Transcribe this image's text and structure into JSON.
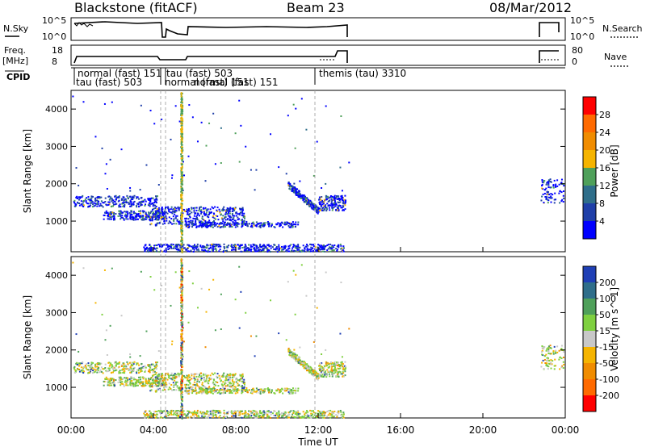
{
  "header": {
    "station": "Blackstone (fitACF)",
    "beam": "Beam 23",
    "date": "08/Mar/2012"
  },
  "param_panels": {
    "nsky_label": "N.Sky",
    "nsky_ticks": [
      "10^5",
      "10^0"
    ],
    "nsearch_label": "N.Search",
    "nsearch_ticks": [
      "10^5",
      "10^0"
    ],
    "freq_label": "Freq.",
    "freq_unit": "[MHz]",
    "freq_ticks": [
      "18",
      "8"
    ],
    "nave_label": "Nave",
    "nave_ticks": [
      "80",
      "0"
    ],
    "cpid_label": "CPID"
  },
  "cpid_segments": [
    {
      "label": "normal (fast) 151",
      "start_h": 0.3
    },
    {
      "label": "tau (fast) 503",
      "start_h": 0.1
    },
    {
      "label": "tau (fast) 503",
      "start_h": 4.6
    },
    {
      "label": "normal (fast) 151",
      "start_h": 4.5
    },
    {
      "label": "normal (fast) 151",
      "start_h": 5.3
    },
    {
      "label": "themis (tau) 3310",
      "start_h": 12.1
    }
  ],
  "chart_data": [
    {
      "type": "heatmap",
      "name": "power-panel",
      "xlabel": "Time UT",
      "ylabel": "Slant Range [km]",
      "xlim_hours": [
        0,
        24
      ],
      "ylim": [
        180,
        4500
      ],
      "yticks": [
        "1000",
        "2000",
        "3000",
        "4000"
      ],
      "colorbar": {
        "label": "Power [dB]",
        "ticks": [
          "4",
          "8",
          "12",
          "16",
          "20",
          "24",
          "28"
        ],
        "colors": [
          "#0000ff",
          "#1f3fa8",
          "#2f6e8a",
          "#4fa05a",
          "#f5b400",
          "#f08c00",
          "#ff6a00",
          "#ff0000"
        ],
        "range": [
          0,
          32
        ]
      }
    },
    {
      "type": "heatmap",
      "name": "velocity-panel",
      "xlabel": "Time UT",
      "ylabel": "Slant Range [km]",
      "xlim_hours": [
        0,
        24
      ],
      "ylim": [
        180,
        4500
      ],
      "xticks": [
        "00:00",
        "04:00",
        "08:00",
        "12:00",
        "16:00",
        "20:00",
        "00:00"
      ],
      "yticks": [
        "1000",
        "2000",
        "3000",
        "4000"
      ],
      "colorbar": {
        "label": "Velocity [m s^-1]",
        "ticks": [
          "200",
          "100",
          "50",
          "15",
          "-15",
          "-50",
          "-100",
          "-200"
        ],
        "colors": [
          "#1f3fb5",
          "#2f6e8a",
          "#4fa05a",
          "#7fd040",
          "#c8c8c8",
          "#f5b400",
          "#f08c00",
          "#ff6a00",
          "#ff0000"
        ]
      }
    }
  ]
}
